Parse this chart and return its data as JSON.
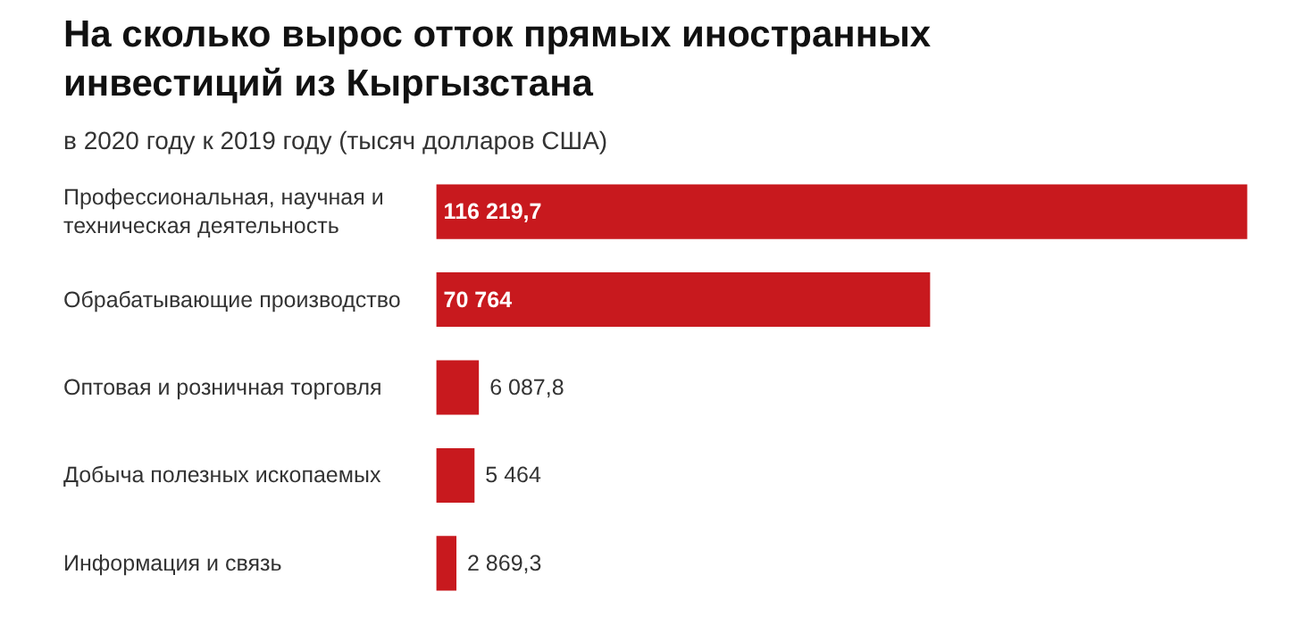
{
  "chart_data": {
    "type": "bar",
    "orientation": "horizontal",
    "title": "На сколько вырос отток прямых иностранных инвестиций из Кыргызстана",
    "subtitle": "в 2020 году к 2019 году (тысяч долларов США)",
    "categories": [
      "Профессиональная, научная и техническая деятельность",
      "Обрабатывающие производство",
      "Оптовая и розничная торговля",
      "Добыча полезных ископаемых",
      "Информация и связь"
    ],
    "values": [
      116219.7,
      70764,
      6087.8,
      5464,
      2869.3
    ],
    "color": "#c8191e",
    "value_labels": [
      "116 219,7",
      "70 764",
      "6 087,8",
      "5 464",
      "2 869,3"
    ],
    "grid": false
  }
}
